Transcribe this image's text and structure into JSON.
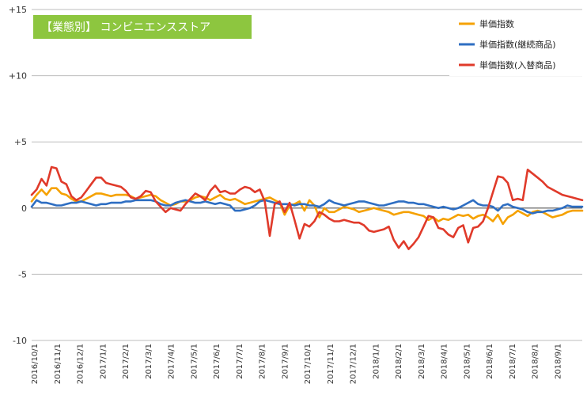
{
  "chart_data": {
    "type": "line",
    "title": "【業態別】 コンビニエンスストア",
    "xlabel": "",
    "ylabel": "",
    "ylim": [
      -10,
      15
    ],
    "y_ticks": [
      {
        "value": 15,
        "label": "+15"
      },
      {
        "value": 10,
        "label": "+10"
      },
      {
        "value": 5,
        "label": "+5"
      },
      {
        "value": 0,
        "label": "0"
      },
      {
        "value": -5,
        "label": "-5"
      },
      {
        "value": -10,
        "label": "-10"
      }
    ],
    "x_labels": [
      "2016/10/1",
      "2016/11/1",
      "2016/12/1",
      "2017/1/1",
      "2017/2/1",
      "2017/3/1",
      "2017/4/1",
      "2017/5/1",
      "2017/6/1",
      "2017/7/1",
      "2017/8/1",
      "2017/9/1",
      "2017/10/1",
      "2017/11/1",
      "2017/12/1",
      "2018/1/1",
      "2018/2/1",
      "2018/3/1",
      "2018/4/1",
      "2018/5/1",
      "2018/6/1",
      "2018/7/1",
      "2018/8/1",
      "2018/9/1"
    ],
    "legend_position": "top-right",
    "grid": "horizontal",
    "series": [
      {
        "name": "単価指数",
        "color": "#f5a100",
        "values": [
          0.5,
          1.0,
          1.4,
          1.0,
          1.5,
          1.5,
          1.1,
          1.0,
          0.7,
          0.5,
          0.5,
          0.7,
          0.9,
          1.1,
          1.1,
          1.0,
          0.9,
          1.0,
          1.0,
          1.0,
          0.9,
          0.7,
          0.8,
          0.9,
          1.0,
          0.9,
          0.6,
          0.4,
          0.2,
          0.3,
          0.5,
          0.5,
          0.6,
          0.8,
          0.9,
          0.8,
          0.6,
          0.8,
          1.0,
          0.7,
          0.6,
          0.7,
          0.5,
          0.3,
          0.4,
          0.5,
          0.6,
          0.7,
          0.8,
          0.6,
          0.4,
          -0.5,
          0.2,
          0.3,
          0.5,
          -0.2,
          0.6,
          0.2,
          -0.7,
          0.0,
          -0.3,
          -0.3,
          -0.1,
          0.1,
          0.0,
          -0.1,
          -0.3,
          -0.2,
          -0.1,
          0.0,
          -0.1,
          -0.2,
          -0.3,
          -0.5,
          -0.4,
          -0.3,
          -0.3,
          -0.4,
          -0.5,
          -0.6,
          -0.9,
          -0.7,
          -1.0,
          -0.8,
          -0.9,
          -0.7,
          -0.5,
          -0.6,
          -0.5,
          -0.8,
          -0.6,
          -0.5,
          -0.7,
          -1.0,
          -0.5,
          -1.2,
          -0.7,
          -0.5,
          -0.2,
          -0.4,
          -0.6,
          -0.3,
          -0.2,
          -0.3,
          -0.5,
          -0.7,
          -0.6,
          -0.5,
          -0.3,
          -0.2,
          -0.2,
          -0.2
        ],
        "value_note": ""
      },
      {
        "name": "単価指数(継続商品)",
        "color": "#2e6ec2",
        "values": [
          0.1,
          0.6,
          0.4,
          0.4,
          0.3,
          0.2,
          0.2,
          0.3,
          0.4,
          0.4,
          0.5,
          0.4,
          0.3,
          0.2,
          0.3,
          0.3,
          0.4,
          0.4,
          0.4,
          0.5,
          0.5,
          0.6,
          0.6,
          0.6,
          0.6,
          0.5,
          0.3,
          0.2,
          0.2,
          0.4,
          0.5,
          0.6,
          0.5,
          0.4,
          0.4,
          0.5,
          0.4,
          0.3,
          0.4,
          0.3,
          0.2,
          -0.2,
          -0.2,
          -0.1,
          0.0,
          0.2,
          0.5,
          0.6,
          0.5,
          0.4,
          0.3,
          0.3,
          0.3,
          0.2,
          0.3,
          0.3,
          0.2,
          0.2,
          0.1,
          0.3,
          0.6,
          0.4,
          0.3,
          0.2,
          0.3,
          0.4,
          0.5,
          0.5,
          0.4,
          0.3,
          0.2,
          0.2,
          0.3,
          0.4,
          0.5,
          0.5,
          0.4,
          0.4,
          0.3,
          0.3,
          0.2,
          0.1,
          0.0,
          0.1,
          0.0,
          -0.1,
          0.0,
          0.2,
          0.4,
          0.6,
          0.3,
          0.2,
          0.2,
          0.1,
          -0.2,
          0.2,
          0.3,
          0.1,
          0.0,
          -0.1,
          -0.3,
          -0.4,
          -0.3,
          -0.3,
          -0.2,
          -0.2,
          -0.1,
          0.0,
          0.2,
          0.1,
          0.1,
          0.1
        ],
        "value_note": ""
      },
      {
        "name": "単価指数(入替商品)",
        "color": "#e03a2a",
        "values": [
          1.0,
          1.4,
          2.2,
          1.7,
          3.1,
          3.0,
          2.0,
          1.8,
          0.9,
          0.6,
          0.8,
          1.3,
          1.8,
          2.3,
          2.3,
          1.9,
          1.8,
          1.7,
          1.6,
          1.3,
          0.8,
          0.7,
          0.9,
          1.3,
          1.2,
          0.5,
          0.1,
          -0.3,
          0.0,
          -0.1,
          -0.2,
          0.3,
          0.7,
          1.1,
          0.9,
          0.6,
          1.3,
          1.7,
          1.2,
          1.3,
          1.1,
          1.1,
          1.4,
          1.6,
          1.5,
          1.2,
          1.4,
          0.5,
          -2.1,
          0.3,
          0.5,
          -0.3,
          0.4,
          -0.9,
          -2.3,
          -1.2,
          -1.4,
          -1.0,
          -0.3,
          -0.5,
          -0.8,
          -1.0,
          -1.0,
          -0.9,
          -1.0,
          -1.1,
          -1.1,
          -1.3,
          -1.7,
          -1.8,
          -1.7,
          -1.6,
          -1.4,
          -2.4,
          -3.0,
          -2.5,
          -3.1,
          -2.7,
          -2.2,
          -1.4,
          -0.6,
          -0.7,
          -1.5,
          -1.6,
          -2.0,
          -2.2,
          -1.5,
          -1.3,
          -2.6,
          -1.5,
          -1.4,
          -1.0,
          0.0,
          1.2,
          2.4,
          2.3,
          1.9,
          0.6,
          0.7,
          0.6,
          2.9,
          2.6,
          2.3,
          2.0,
          1.6,
          1.4,
          1.2,
          1.0,
          0.9,
          0.8,
          0.7,
          0.6
        ],
        "value_note": ""
      }
    ]
  }
}
